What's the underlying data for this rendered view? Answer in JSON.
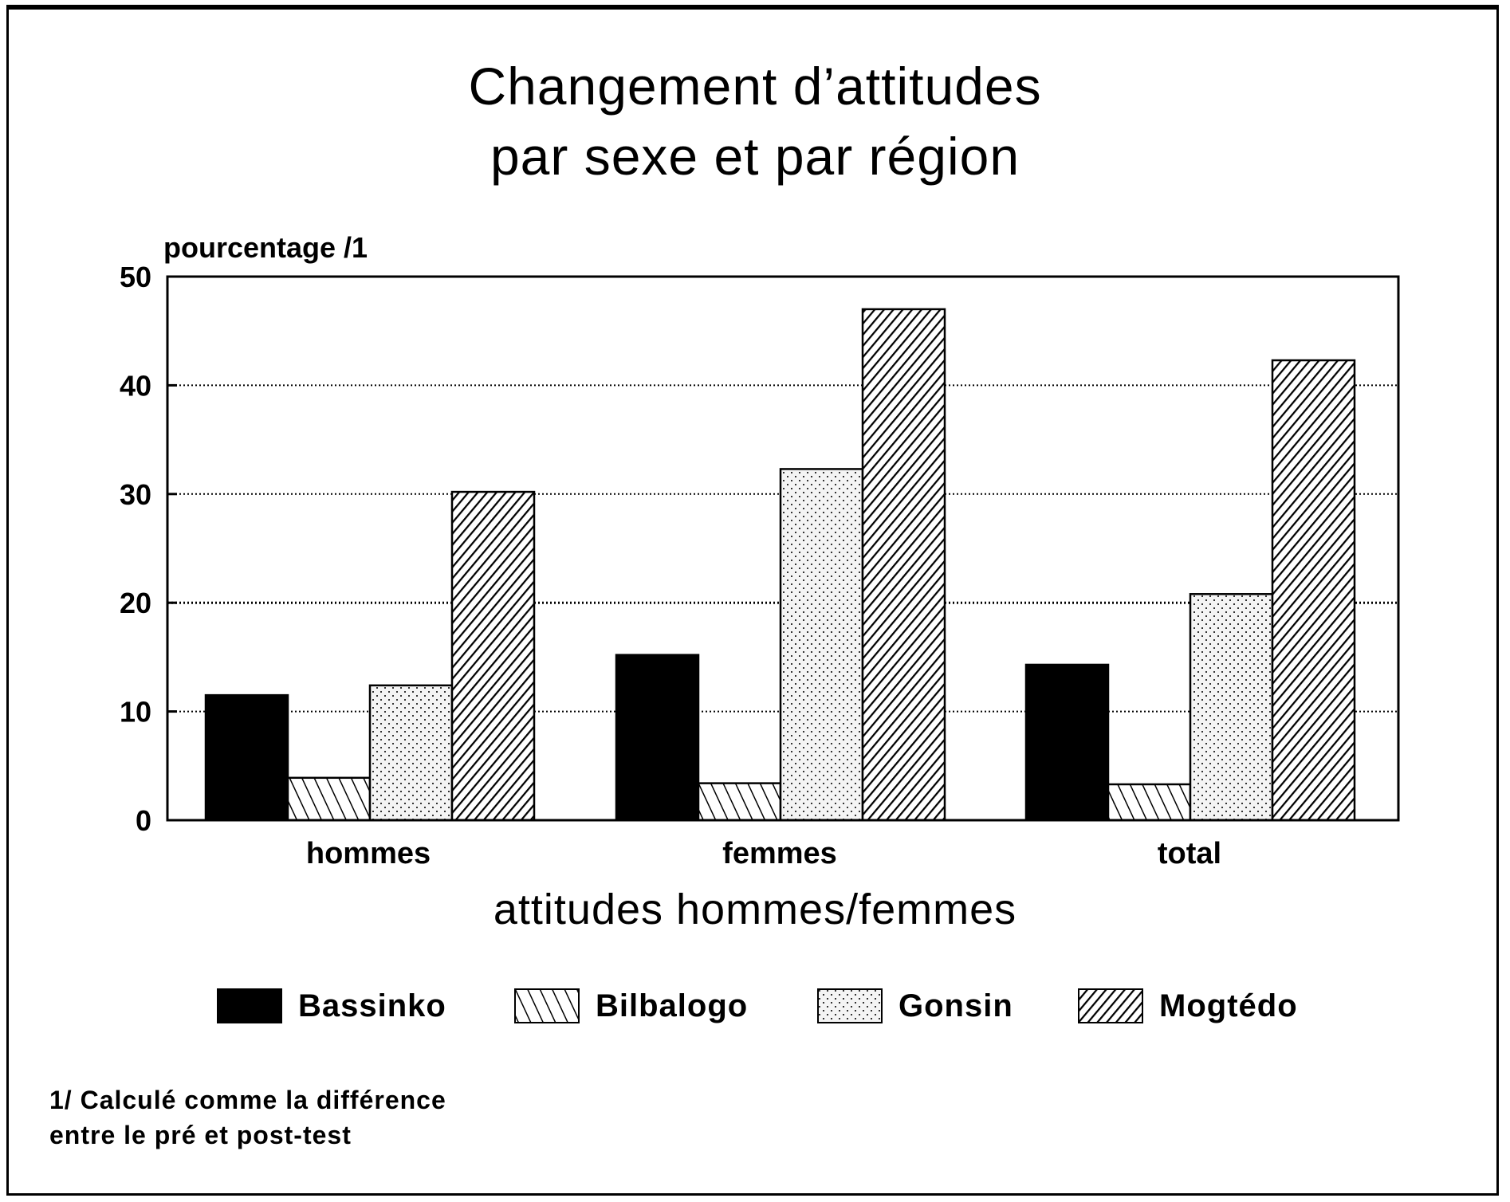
{
  "title": {
    "line1": "Changement d’attitudes",
    "line2": "par sexe et par région"
  },
  "y_axis_label": "pourcentage /1",
  "x_axis_title": "attitudes hommes/femmes",
  "y_ticks": [
    "0",
    "10",
    "20",
    "30",
    "40",
    "50"
  ],
  "categories": [
    "hommes",
    "femmes",
    "total"
  ],
  "legend": [
    {
      "label": "Bassinko",
      "pattern": "solid-black"
    },
    {
      "label": "Bilbalogo",
      "pattern": "back-diagonal-hatch"
    },
    {
      "label": "Gonsin",
      "pattern": "dots"
    },
    {
      "label": "Mogtédo",
      "pattern": "forward-diagonal-hatch"
    }
  ],
  "footnote": {
    "line1": "1/ Calculé comme la différence",
    "line2": "entre le pré et post-test"
  },
  "chart_data": {
    "type": "bar",
    "title": "Changement d'attitudes par sexe et par région",
    "xlabel": "attitudes hommes/femmes",
    "ylabel": "pourcentage /1",
    "ylim": [
      0,
      50
    ],
    "yticks": [
      0,
      10,
      20,
      30,
      40,
      50
    ],
    "grid": "horizontal dotted",
    "legend_position": "bottom",
    "categories": [
      "hommes",
      "femmes",
      "total"
    ],
    "series": [
      {
        "name": "Bassinko",
        "values": [
          11.5,
          15.2,
          14.3
        ]
      },
      {
        "name": "Bilbalogo",
        "values": [
          3.9,
          3.4,
          3.3
        ]
      },
      {
        "name": "Gonsin",
        "values": [
          12.4,
          32.3,
          20.8
        ]
      },
      {
        "name": "Mogtédo",
        "values": [
          30.2,
          47.0,
          42.3
        ]
      }
    ],
    "footnote": "1/ Calculé comme la différence entre le pré et post-test"
  }
}
